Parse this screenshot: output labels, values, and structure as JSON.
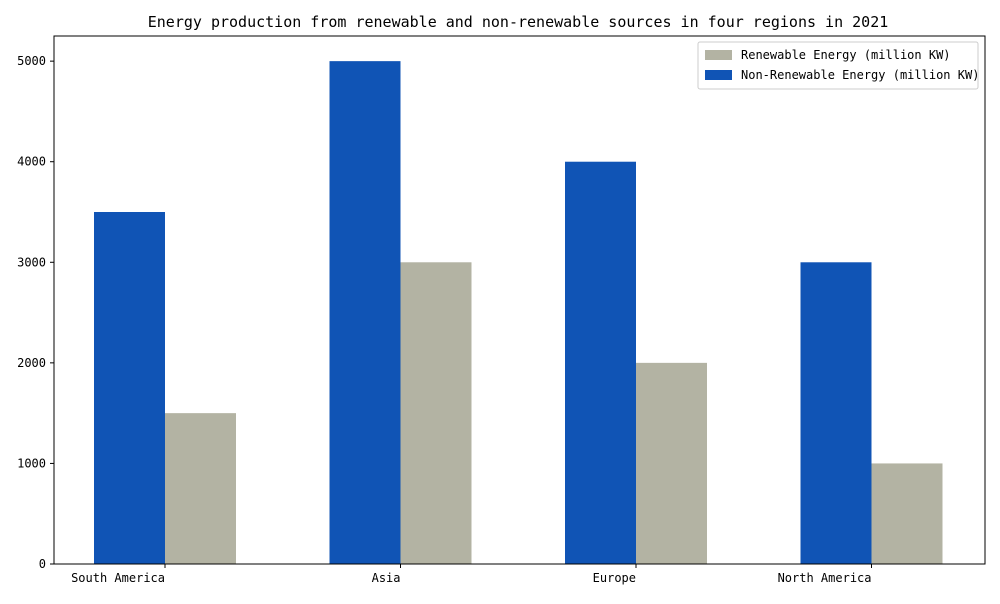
{
  "chart_data": {
    "type": "bar",
    "title": "Energy production from renewable and non-renewable sources in four regions in 2021",
    "xlabel": "",
    "ylabel": "",
    "categories": [
      "South America",
      "Asia",
      "Europe",
      "North America"
    ],
    "series": [
      {
        "name": "Renewable Energy (million KW)",
        "values": [
          1500,
          3000,
          2000,
          1000
        ],
        "color": "#b3b3a3"
      },
      {
        "name": "Non-Renewable Energy (million KW)",
        "values": [
          3500,
          5000,
          4000,
          3000
        ],
        "color": "#1054b5"
      }
    ],
    "ylim": [
      0,
      5250
    ],
    "yticks": [
      0,
      1000,
      2000,
      3000,
      4000,
      5000
    ],
    "grid": false,
    "legend_position": "top-right"
  }
}
